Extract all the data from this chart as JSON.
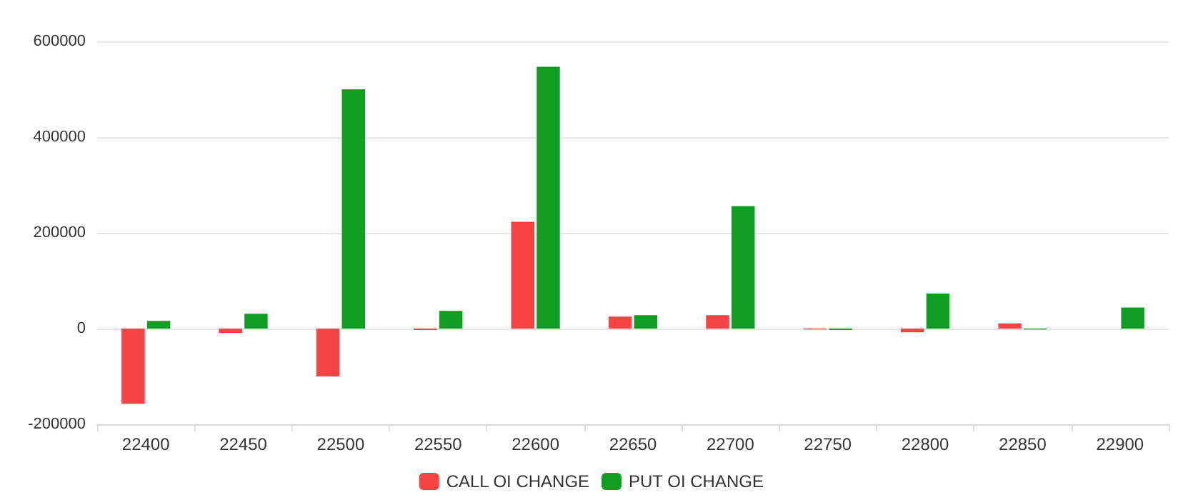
{
  "chart_data": {
    "type": "bar",
    "categories": [
      "22400",
      "22450",
      "22500",
      "22550",
      "22600",
      "22650",
      "22700",
      "22750",
      "22800",
      "22850",
      "22900"
    ],
    "series": [
      {
        "name": "CALL OI CHANGE",
        "color": "#f74343",
        "values": [
          -157000,
          -9000,
          -100000,
          -3000,
          223000,
          25000,
          28000,
          -2000,
          -8000,
          11000,
          0
        ]
      },
      {
        "name": "PUT OI CHANGE",
        "color": "#109e22",
        "values": [
          16000,
          31000,
          500000,
          37000,
          547000,
          28000,
          256000,
          -3000,
          73000,
          -2000,
          44000
        ]
      }
    ],
    "ylim": [
      -200000,
      600000
    ],
    "yticks": [
      -200000,
      0,
      200000,
      400000,
      600000
    ],
    "grid": "y",
    "legend": "bottom"
  }
}
